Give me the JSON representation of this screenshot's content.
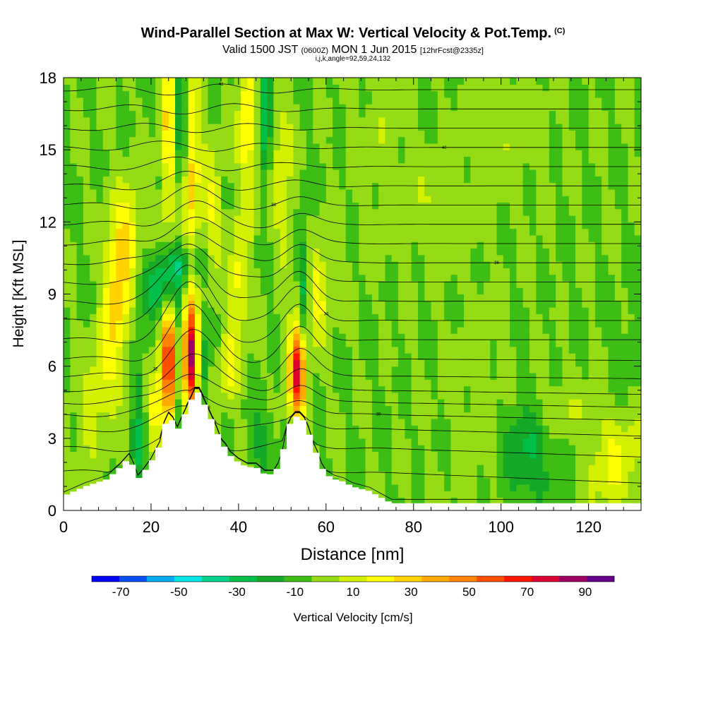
{
  "header": {
    "title": "Wind-Parallel Section at Max W: Vertical Velocity & Pot.Temp.",
    "copyright": "(C)",
    "subtitle_main_1": "Valid 1500 JST",
    "subtitle_small_1": "(0600Z)",
    "subtitle_main_2": "MON 1 Jun 2015",
    "subtitle_small_2": "[12hrFcst@2335z]",
    "params": "i,j,k,angle=92,59,24,132"
  },
  "chart_data": {
    "type": "heatmap",
    "xlabel": "Distance [nm]",
    "ylabel": "Height [Kft MSL]",
    "xlim": [
      0,
      132
    ],
    "ylim": [
      0,
      18
    ],
    "x_ticks": [
      "0",
      "20",
      "40",
      "60",
      "80",
      "100",
      "120"
    ],
    "y_ticks": [
      "0",
      "3",
      "6",
      "9",
      "12",
      "15",
      "18"
    ],
    "colorbar": {
      "label": "Vertical Velocity [cm/s]",
      "tick_labels": [
        "-70",
        "-50",
        "-30",
        "-10",
        "10",
        "30",
        "50",
        "70",
        "90"
      ],
      "bins": [
        -80,
        -70,
        -60,
        -50,
        -40,
        -30,
        -20,
        -10,
        0,
        10,
        20,
        30,
        40,
        50,
        60,
        70,
        80,
        90,
        100
      ],
      "colors": [
        "#0000ff",
        "#0a4ef5",
        "#00aaf0",
        "#00e6e6",
        "#00d28c",
        "#00c04a",
        "#14aa28",
        "#3cbe14",
        "#96dc14",
        "#d2f000",
        "#ffff00",
        "#ffd200",
        "#ffaa00",
        "#ff8200",
        "#ff5000",
        "#ff1400",
        "#dc0032",
        "#a00064",
        "#64008c"
      ]
    },
    "terrain": [
      [
        0,
        0.6
      ],
      [
        5,
        1.0
      ],
      [
        10,
        1.3
      ],
      [
        13,
        1.8
      ],
      [
        15,
        2.2
      ],
      [
        16,
        1.8
      ],
      [
        17,
        1.3
      ],
      [
        18,
        1.5
      ],
      [
        20,
        2.0
      ],
      [
        22,
        2.7
      ],
      [
        23,
        3.5
      ],
      [
        24,
        3.9
      ],
      [
        25,
        3.7
      ],
      [
        26,
        3.3
      ],
      [
        27,
        3.7
      ],
      [
        28,
        4.1
      ],
      [
        29,
        4.5
      ],
      [
        30,
        4.9
      ],
      [
        31,
        4.9
      ],
      [
        32,
        4.5
      ],
      [
        33,
        4.1
      ],
      [
        34,
        3.7
      ],
      [
        35,
        3.3
      ],
      [
        36,
        2.8
      ],
      [
        37,
        2.6
      ],
      [
        38,
        2.3
      ],
      [
        40,
        2.0
      ],
      [
        42,
        1.8
      ],
      [
        44,
        1.8
      ],
      [
        46,
        1.5
      ],
      [
        48,
        1.5
      ],
      [
        49,
        1.8
      ],
      [
        50,
        2.3
      ],
      [
        51,
        3.3
      ],
      [
        52,
        3.7
      ],
      [
        53,
        3.9
      ],
      [
        54,
        3.9
      ],
      [
        55,
        3.7
      ],
      [
        56,
        3.3
      ],
      [
        57,
        2.7
      ],
      [
        58,
        2.3
      ],
      [
        59,
        1.8
      ],
      [
        60,
        1.5
      ],
      [
        62,
        1.3
      ],
      [
        64,
        1.2
      ],
      [
        66,
        1.0
      ],
      [
        68,
        0.9
      ],
      [
        70,
        0.8
      ],
      [
        72,
        0.6
      ],
      [
        75,
        0.3
      ],
      [
        80,
        0.3
      ],
      [
        100,
        0.3
      ],
      [
        132,
        0.3
      ]
    ],
    "vertical_velocity_features": [
      {
        "x": 24,
        "y": 6.0,
        "sx": 1.2,
        "sy": 1.8,
        "amp": 75
      },
      {
        "x": 29,
        "y": 6.3,
        "sx": 1.3,
        "sy": 1.6,
        "amp": 100
      },
      {
        "x": 21,
        "y": 4.2,
        "sx": 1.0,
        "sy": 1.2,
        "amp": 28
      },
      {
        "x": 53.5,
        "y": 5.8,
        "sx": 1.3,
        "sy": 1.4,
        "amp": 85
      },
      {
        "x": 26.8,
        "y": 6.0,
        "sx": 0.9,
        "sy": 2.2,
        "amp": -25
      },
      {
        "x": 31.5,
        "y": 6.0,
        "sx": 0.8,
        "sy": 1.5,
        "amp": -28
      },
      {
        "x": 12,
        "y": 9.0,
        "sx": 2.0,
        "sy": 2.2,
        "amp": 35
      },
      {
        "x": 15,
        "y": 11.5,
        "sx": 2.0,
        "sy": 1.5,
        "amp": 25
      },
      {
        "x": 22,
        "y": 9.3,
        "sx": 3.0,
        "sy": 0.8,
        "amp": -30
      },
      {
        "x": 27,
        "y": 10.3,
        "sx": 3.5,
        "sy": 0.6,
        "amp": -25
      },
      {
        "x": 24,
        "y": 16.0,
        "sx": 1.2,
        "sy": 3.0,
        "amp": 32
      },
      {
        "x": 27,
        "y": 16.5,
        "sx": 0.9,
        "sy": 2.5,
        "amp": -35
      },
      {
        "x": 29,
        "y": 14.0,
        "sx": 1.5,
        "sy": 3.0,
        "amp": 35
      },
      {
        "x": 34,
        "y": 12.5,
        "sx": 1.5,
        "sy": 2.0,
        "amp": 20
      },
      {
        "x": 42,
        "y": 16.0,
        "sx": 1.5,
        "sy": 2.5,
        "amp": 30
      },
      {
        "x": 46,
        "y": 16.5,
        "sx": 1.0,
        "sy": 2.0,
        "amp": -30
      },
      {
        "x": 50,
        "y": 14.0,
        "sx": 1.5,
        "sy": 2.5,
        "amp": 20
      },
      {
        "x": 40,
        "y": 9.5,
        "sx": 1.6,
        "sy": 1.6,
        "amp": 25
      },
      {
        "x": 38,
        "y": 6.0,
        "sx": 1.5,
        "sy": 1.2,
        "amp": 22
      },
      {
        "x": 55,
        "y": 9.0,
        "sx": 0.8,
        "sy": 2.0,
        "amp": -28
      },
      {
        "x": 58,
        "y": 9.0,
        "sx": 2.0,
        "sy": 1.4,
        "amp": 25
      },
      {
        "x": 9,
        "y": 5.5,
        "sx": 2.0,
        "sy": 1.5,
        "amp": 18
      },
      {
        "x": 5,
        "y": 3.5,
        "sx": 2.0,
        "sy": 1.5,
        "amp": 10
      },
      {
        "x": 17,
        "y": 3.5,
        "sx": 1.0,
        "sy": 2.5,
        "amp": -20
      },
      {
        "x": 45,
        "y": 3.0,
        "sx": 2.0,
        "sy": 1.0,
        "amp": -15
      },
      {
        "x": 106,
        "y": 2.5,
        "sx": 4.0,
        "sy": 1.6,
        "amp": -22
      },
      {
        "x": 126,
        "y": 2.0,
        "sx": 4.5,
        "sy": 1.5,
        "amp": 20
      },
      {
        "x": 112,
        "y": 4.3,
        "sx": 5.0,
        "sy": 0.8,
        "amp": 10
      },
      {
        "x": 95,
        "y": 5.0,
        "sx": 5.0,
        "sy": 3.0,
        "amp": 5
      },
      {
        "x": 85,
        "y": 12.5,
        "sx": 6.0,
        "sy": 1.5,
        "amp": 8
      },
      {
        "x": 100,
        "y": 16.0,
        "sx": 6.0,
        "sy": 2.0,
        "amp": 7
      },
      {
        "x": 73,
        "y": 15.5,
        "sx": 4.0,
        "sy": 2.5,
        "amp": 6
      },
      {
        "x": 128,
        "y": 6.5,
        "sx": 3.0,
        "sy": 1.2,
        "amp": -6
      }
    ],
    "theta_contour_base_heights_kft": [
      0.5,
      1.6,
      2.6,
      3.4,
      4.0,
      4.5,
      5.0,
      5.6,
      6.3,
      7.1,
      7.9,
      8.7,
      9.5,
      10.3,
      11.1,
      11.9,
      12.7,
      13.5,
      14.3,
      15.1,
      15.9,
      16.7,
      17.5
    ],
    "contour_label_text": [
      "28",
      "30",
      "32",
      "34",
      "36",
      "38",
      "40",
      "42"
    ]
  }
}
